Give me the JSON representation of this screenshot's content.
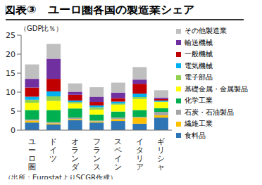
{
  "chart_data": {
    "type": "bar",
    "title": "図表③　ユーロ圏各国の製造業シェア",
    "y_label": "（GDP比％）",
    "annotations": [
      "（出所：EurostatよりSCGR作成）"
    ],
    "categories": [
      "ユーロ圏",
      "ドイツ",
      "オランダ",
      "フランス",
      "スペイン",
      "イタリア",
      "ギリシャ"
    ],
    "stacked": true,
    "grid": false,
    "legend": "right",
    "ylim": [
      0,
      25
    ],
    "yticks": [
      0,
      5,
      10,
      15,
      20,
      25
    ],
    "series": [
      {
        "name": "食料品",
        "color": "#2e75b6",
        "values": [
          2.0,
          1.5,
          2.6,
          2.0,
          2.4,
          1.7,
          3.3
        ]
      },
      {
        "name": "繊維工業",
        "color": "#ffc000",
        "values": [
          0.5,
          0.3,
          0.3,
          0.3,
          0.5,
          1.6,
          0.6
        ]
      },
      {
        "name": "石炭・石油製品",
        "color": "#a5a5a5",
        "values": [
          0.3,
          0.3,
          0.4,
          0.2,
          0.4,
          0.2,
          0.9
        ]
      },
      {
        "name": "化学工業",
        "color": "#00b050",
        "values": [
          2.5,
          3.2,
          2.4,
          1.6,
          1.6,
          1.8,
          1.0
        ]
      },
      {
        "name": "基礎金属・金属製品",
        "color": "#ffff00",
        "values": [
          1.9,
          2.4,
          1.3,
          1.3,
          1.8,
          2.9,
          1.6
        ]
      },
      {
        "name": "電子部品",
        "color": "#92d050",
        "values": [
          0.8,
          1.2,
          0.4,
          0.6,
          0.3,
          0.5,
          0.1
        ]
      },
      {
        "name": "電気機械",
        "color": "#00b0f0",
        "values": [
          0.8,
          1.3,
          0.4,
          0.5,
          0.5,
          0.9,
          0.3
        ]
      },
      {
        "name": "一般機械",
        "color": "#c00000",
        "values": [
          2.4,
          3.3,
          1.5,
          0.9,
          0.9,
          2.6,
          0.4
        ]
      },
      {
        "name": "輸送機械",
        "color": "#7030a0",
        "values": [
          2.3,
          5.3,
          0.8,
          1.4,
          1.5,
          1.1,
          0.4
        ]
      },
      {
        "name": "その他製造業",
        "color": "#bfbfbf",
        "values": [
          3.8,
          3.9,
          2.2,
          2.5,
          2.6,
          3.3,
          1.9
        ]
      }
    ]
  }
}
